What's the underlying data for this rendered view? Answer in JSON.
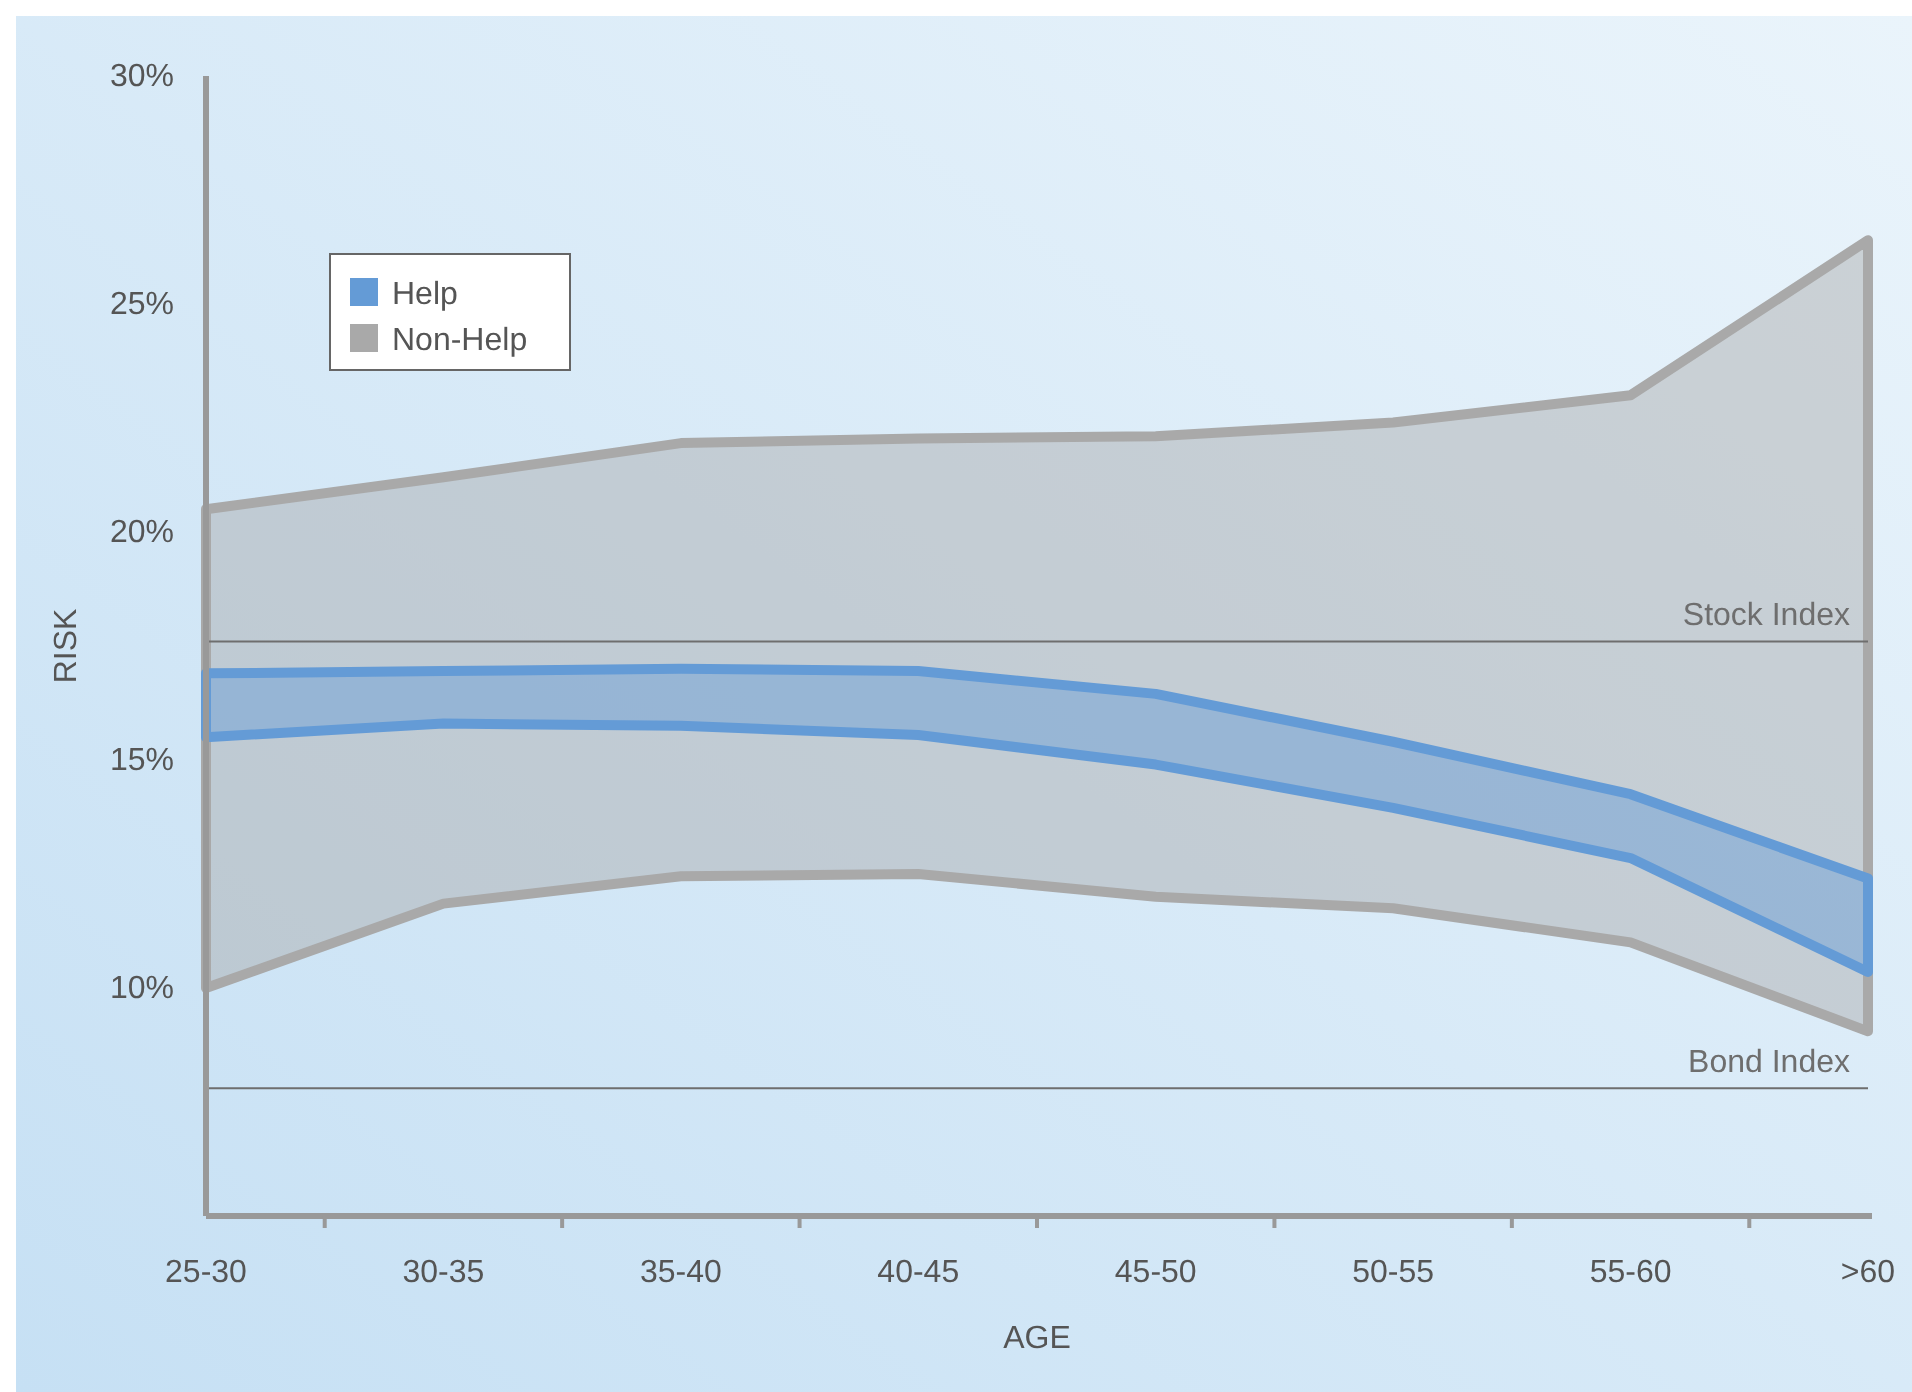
{
  "chart_data": {
    "type": "line",
    "xlabel": "AGE",
    "ylabel": "RISK",
    "categories": [
      "25-30",
      "30-35",
      "35-40",
      "40-45",
      "45-50",
      "50-55",
      "55-60",
      ">60"
    ],
    "ylim": [
      5,
      30
    ],
    "yticks": [
      {
        "value": 10,
        "label": "10%"
      },
      {
        "value": 15,
        "label": "15%"
      },
      {
        "value": 20,
        "label": "20%"
      },
      {
        "value": 25,
        "label": "25%"
      },
      {
        "value": 30,
        "label": "30%"
      }
    ],
    "grid": false,
    "legend": "top left",
    "series": [
      {
        "name": "Non-Help",
        "color": "#a9a9a9",
        "values": [
          null,
          null,
          null,
          null,
          null,
          null,
          null,
          null
        ],
        "upper": [
          20.5,
          21.2,
          21.95,
          22.05,
          22.1,
          22.4,
          23.0,
          26.4
        ],
        "lower": [
          10.0,
          11.85,
          12.45,
          12.5,
          12.0,
          11.75,
          11.0,
          9.05
        ]
      },
      {
        "name": "Help",
        "color": "#649bd6",
        "values": [
          null,
          null,
          null,
          null,
          null,
          null,
          null,
          null
        ],
        "upper": [
          16.9,
          16.95,
          17.0,
          16.95,
          16.45,
          15.4,
          14.25,
          12.4
        ],
        "lower": [
          15.5,
          15.8,
          15.75,
          15.55,
          14.9,
          13.95,
          12.85,
          10.35
        ]
      }
    ],
    "ref_lines": [
      {
        "axis": "y",
        "value": 17.6,
        "label": "Stock Index",
        "color": "#6e6e6e"
      },
      {
        "axis": "y",
        "value": 7.8,
        "label": "Bond Index",
        "color": "#6e6e6e"
      }
    ]
  }
}
